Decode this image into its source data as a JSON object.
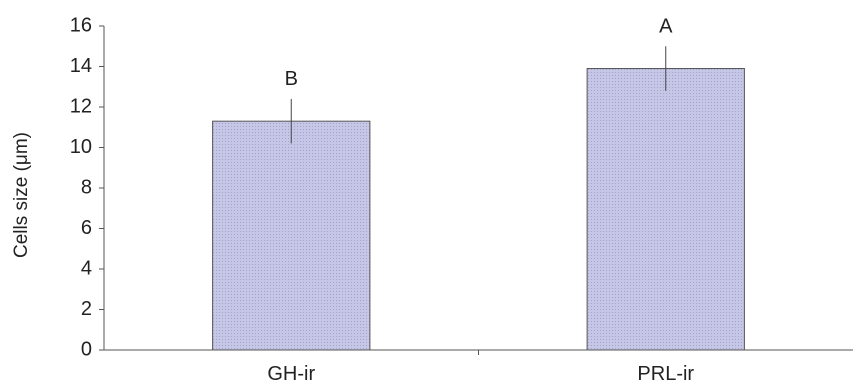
{
  "chart_data": {
    "type": "bar",
    "title": "",
    "xlabel": "",
    "ylabel": "Cells size (μm)",
    "ylim": [
      0,
      16
    ],
    "yticks": [
      0,
      2,
      4,
      6,
      8,
      10,
      12,
      14,
      16
    ],
    "categories": [
      "GH-ir",
      "PRL-ir"
    ],
    "values": [
      11.3,
      13.9
    ],
    "errors": [
      1.1,
      1.1
    ],
    "significance_labels": [
      "B",
      "A"
    ],
    "grid": false,
    "legend": "none",
    "bar_color": "#c6c6e6",
    "bar_pattern_color": "#a2a2cc"
  }
}
